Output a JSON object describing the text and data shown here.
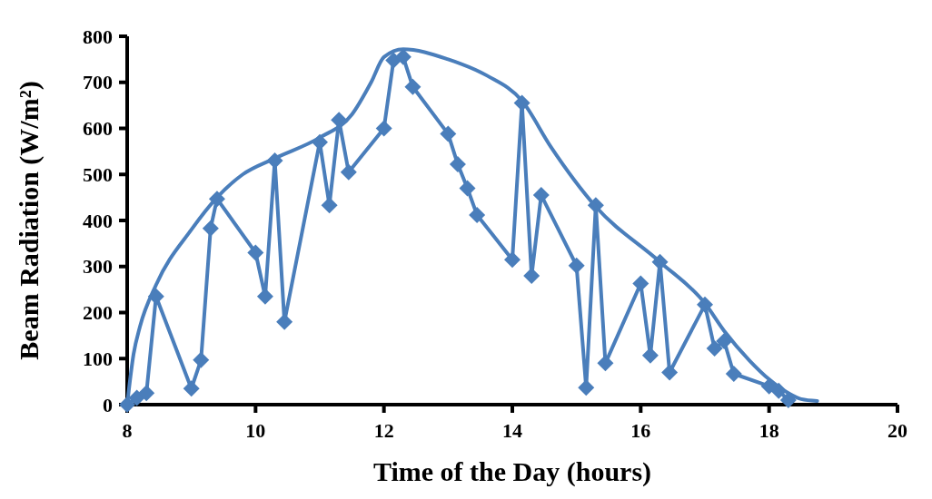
{
  "chart_data": {
    "type": "line",
    "xlabel": "Time of the Day (hours)",
    "ylabel": "Beam Radiation (W/m²)",
    "xlim": [
      8,
      20
    ],
    "ylim": [
      0,
      800
    ],
    "xticks": [
      8,
      10,
      12,
      14,
      16,
      18,
      20
    ],
    "yticks": [
      0,
      100,
      200,
      300,
      400,
      500,
      600,
      700,
      800
    ],
    "grid": false,
    "series": [
      {
        "color": "#4a7ebb",
        "marker": "diamond",
        "x": [
          8,
          8.15,
          8.3,
          8.45,
          9,
          9.15,
          9.3,
          9.4,
          10,
          10.15,
          10.3,
          10.45,
          11,
          11.15,
          11.3,
          11.45,
          12,
          12.15,
          12.3,
          12.45,
          13,
          13.15,
          13.3,
          13.45,
          14,
          14.15,
          14.3,
          14.45,
          15,
          15.15,
          15.3,
          15.45,
          16,
          16.15,
          16.3,
          16.45,
          17,
          17.15,
          17.3,
          17.45,
          18,
          18.15,
          18.3
        ],
        "values": [
          0,
          15,
          25,
          235,
          35,
          97,
          383,
          447,
          330,
          235,
          530,
          180,
          570,
          433,
          618,
          505,
          600,
          748,
          755,
          690,
          588,
          522,
          470,
          412,
          315,
          655,
          280,
          455,
          302,
          37,
          433,
          90,
          263,
          107,
          310,
          70,
          217,
          122,
          138,
          67,
          40,
          30,
          10
        ]
      },
      {
        "color": "#4a7ebb",
        "marker": "none",
        "x": [
          8,
          8.1,
          8.2,
          8.45,
          9,
          9.4,
          9.8,
          10.3,
          11,
          11.5,
          11.8,
          12,
          12.3,
          13,
          13.6,
          14.15,
          14.6,
          15.3,
          16.3,
          17,
          17.3,
          17.7,
          18,
          18.3,
          18.5,
          18.75
        ],
        "values": [
          0,
          110,
          170,
          260,
          380,
          450,
          500,
          535,
          580,
          630,
          700,
          755,
          772,
          750,
          715,
          660,
          560,
          430,
          310,
          220,
          160,
          95,
          55,
          25,
          12,
          8
        ]
      }
    ]
  }
}
